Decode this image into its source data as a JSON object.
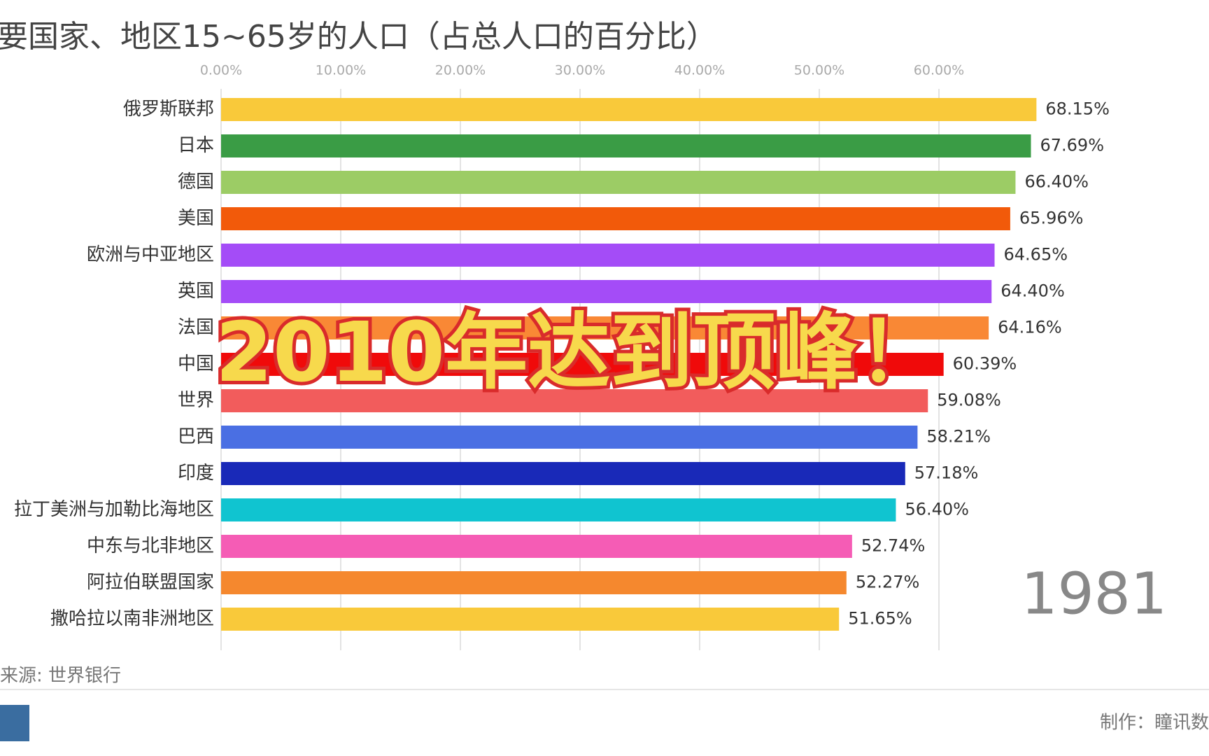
{
  "chart_data": {
    "type": "bar",
    "orientation": "horizontal",
    "title": "要国家、地区15~65岁的人口（占总人口的百分比）",
    "categories": [
      "俄罗斯联邦",
      "日本",
      "德国",
      "美国",
      "欧洲与中亚地区",
      "英国",
      "法国",
      "中国",
      "世界",
      "巴西",
      "印度",
      "拉丁美洲与加勒比海地区",
      "中东与北非地区",
      "阿拉伯联盟国家",
      "撒哈拉以南非洲地区"
    ],
    "values": [
      68.15,
      67.69,
      66.4,
      65.96,
      64.65,
      64.4,
      64.16,
      60.39,
      59.08,
      58.21,
      57.18,
      56.4,
      52.74,
      52.27,
      51.65
    ],
    "value_labels": [
      "68.15%",
      "67.69%",
      "66.40%",
      "65.96%",
      "64.65%",
      "64.40%",
      "64.16%",
      "60.39%",
      "59.08%",
      "58.21%",
      "57.18%",
      "56.40%",
      "52.74%",
      "52.27%",
      "51.65%"
    ],
    "colors": [
      "#f9c93a",
      "#3a9c45",
      "#9ccc65",
      "#f25a0a",
      "#a44cf7",
      "#a44cf7",
      "#f98835",
      "#f00a0a",
      "#f25c5c",
      "#4a6fe3",
      "#1929b8",
      "#10c4d0",
      "#f55cb5",
      "#f5882e",
      "#f9c93a"
    ],
    "xlim": [
      0,
      70
    ],
    "xticks": [
      {
        "value": 0,
        "label": "0.00%"
      },
      {
        "value": 10,
        "label": "10.00%"
      },
      {
        "value": 20,
        "label": "20.00%"
      },
      {
        "value": 30,
        "label": "30.00%"
      },
      {
        "value": 40,
        "label": "40.00%"
      },
      {
        "value": 50,
        "label": "50.00%"
      },
      {
        "value": 60,
        "label": "60.00%"
      }
    ],
    "grid": true,
    "year_label": "1981",
    "annotation": "2010年达到顶峰！",
    "source": "来源: 世界银行",
    "credit": "制作：瞳讯数"
  }
}
